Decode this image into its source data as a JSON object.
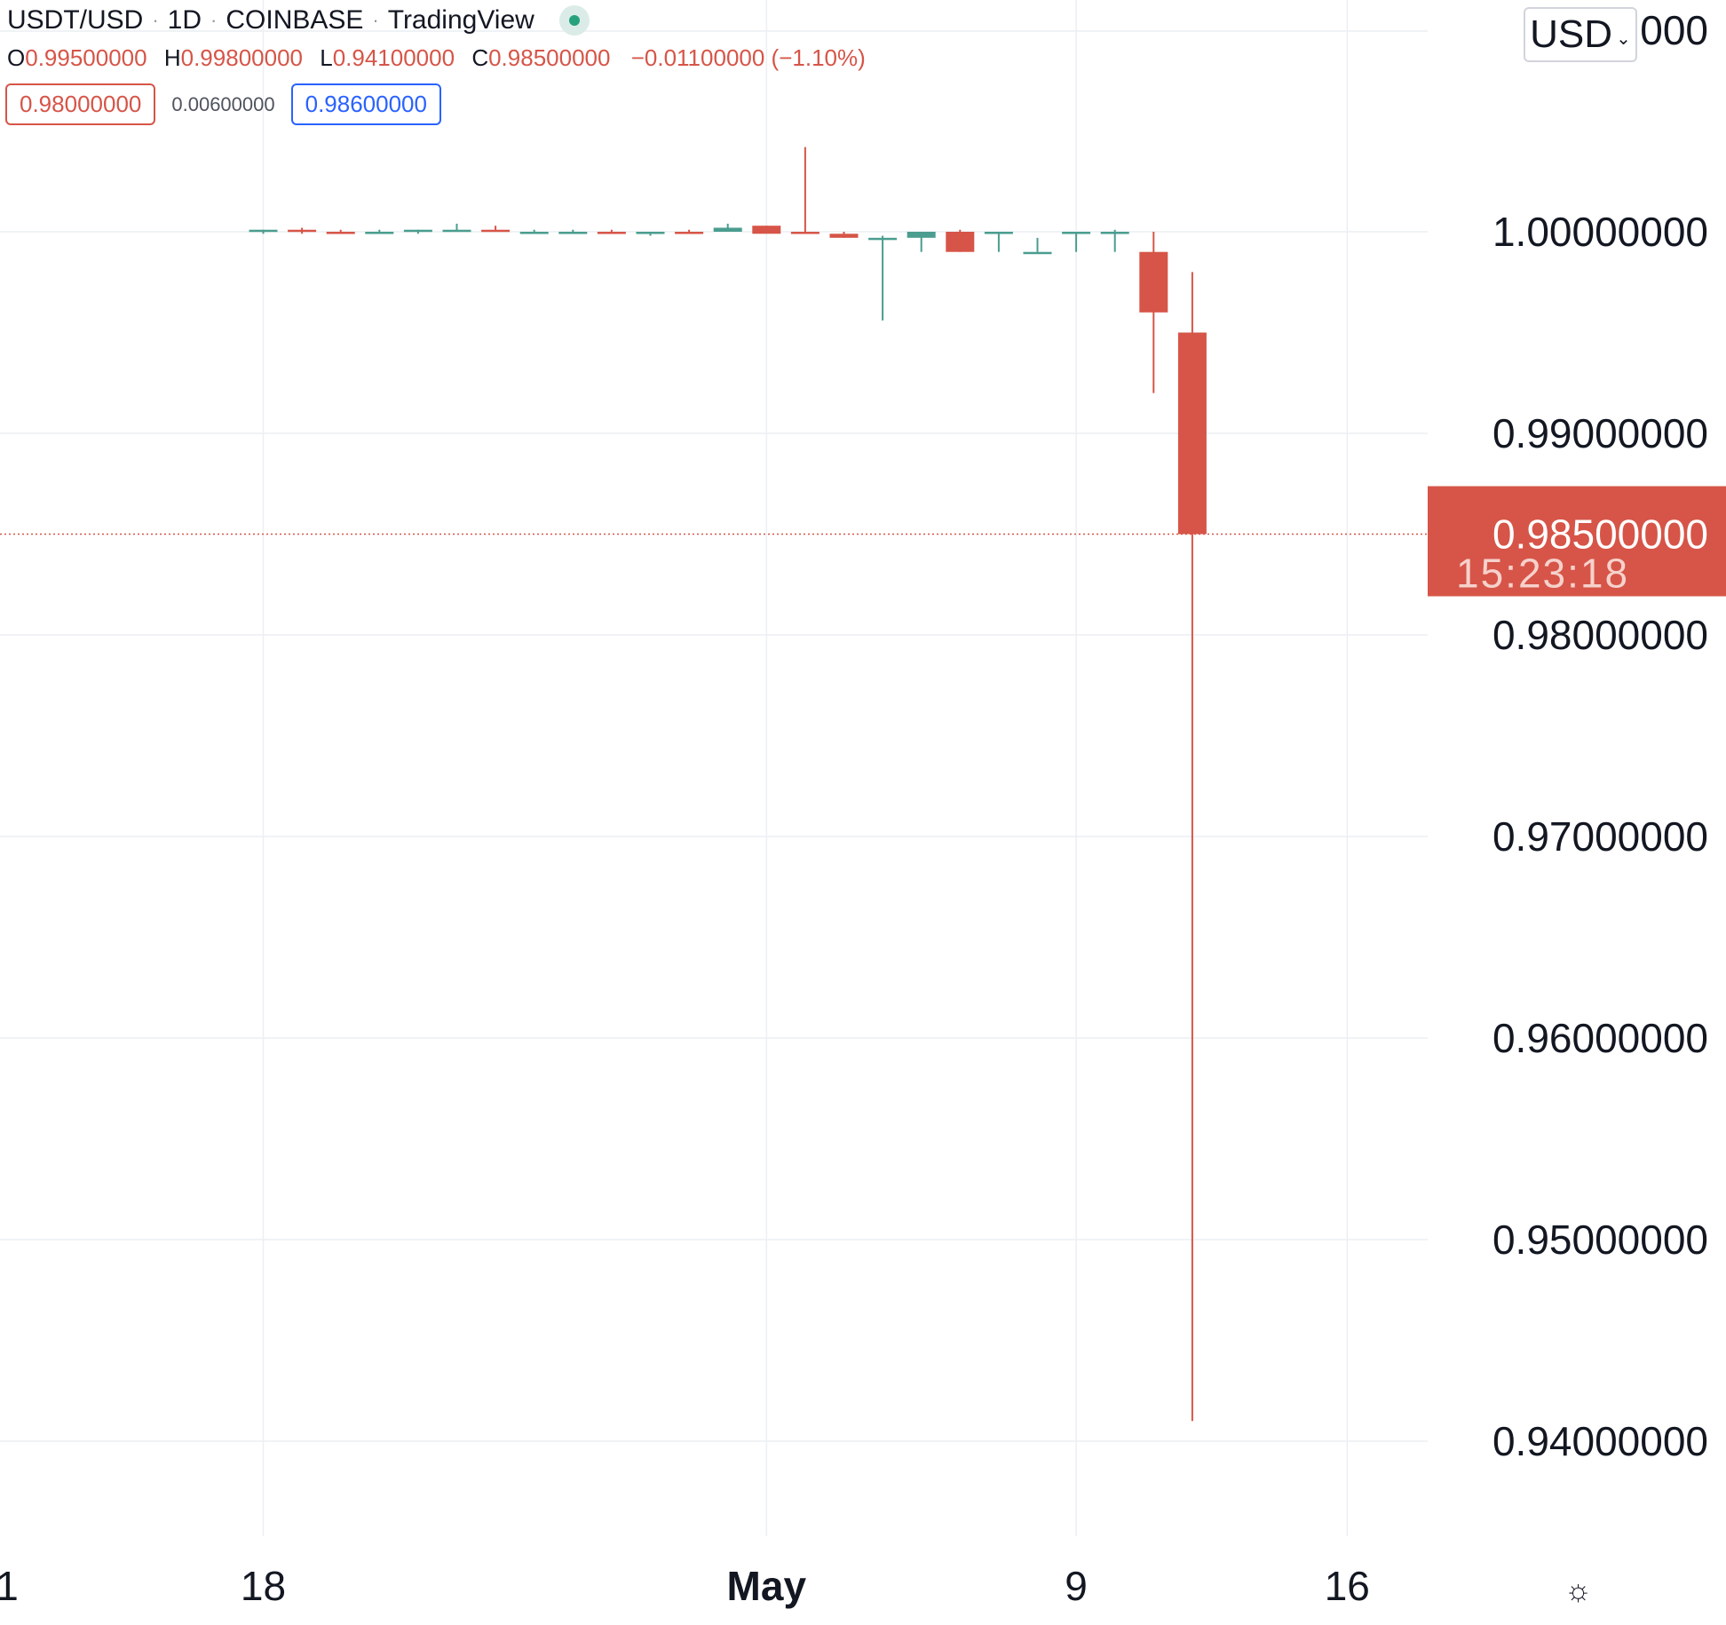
{
  "header": {
    "symbol": "USDT/USD",
    "interval": "1D",
    "exchange": "COINBASE",
    "provider": "TradingView",
    "status": "live"
  },
  "ohlc": {
    "o_key": "O",
    "o": "0.99500000",
    "h_key": "H",
    "h": "0.99800000",
    "l_key": "L",
    "l": "0.94100000",
    "c_key": "C",
    "c": "0.98500000",
    "change": "−0.01100000 (−1.10%)"
  },
  "quote": {
    "bid": "0.98000000",
    "spread": "0.00600000",
    "ask": "0.98600000"
  },
  "currency": {
    "label": "USD"
  },
  "chart_data": {
    "type": "candlestick",
    "title": "",
    "xlabel": "",
    "ylabel": "",
    "ylim": [
      0.9335,
      1.01
    ],
    "y_ticks": [
      1.0,
      0.99,
      0.98,
      0.97,
      0.96,
      0.95,
      0.94
    ],
    "y_tick_labels": [
      "1.00000000",
      "0.99000000",
      "0.98000000",
      "0.97000000",
      "0.96000000",
      "0.95000000",
      "0.94000000"
    ],
    "top_tick_label_partial": "1.0  000",
    "x_tick_labels": [
      {
        "label": "1",
        "index": -6.8,
        "bold": false
      },
      {
        "label": "18",
        "index": 0,
        "bold": false
      },
      {
        "label": "May",
        "index": 13,
        "bold": true
      },
      {
        "label": "9",
        "index": 21,
        "bold": false
      },
      {
        "label": "16",
        "index": 28,
        "bold": false
      }
    ],
    "candles": [
      {
        "date": "Apr 18",
        "o": 1.0,
        "h": 1.0001,
        "l": 0.9999,
        "c": 1.0001
      },
      {
        "date": "Apr 19",
        "o": 1.0001,
        "h": 1.0002,
        "l": 0.9999,
        "c": 1.0
      },
      {
        "date": "Apr 20",
        "o": 1.0,
        "h": 1.0001,
        "l": 0.9999,
        "c": 0.9999
      },
      {
        "date": "Apr 21",
        "o": 0.9999,
        "h": 1.0001,
        "l": 0.9999,
        "c": 1.0
      },
      {
        "date": "Apr 22",
        "o": 1.0,
        "h": 1.0001,
        "l": 0.9999,
        "c": 1.0001
      },
      {
        "date": "Apr 23",
        "o": 1.0001,
        "h": 1.0004,
        "l": 1.0,
        "c": 1.0001
      },
      {
        "date": "Apr 24",
        "o": 1.0001,
        "h": 1.0003,
        "l": 1.0,
        "c": 1.0
      },
      {
        "date": "Apr 25",
        "o": 1.0,
        "h": 1.0001,
        "l": 0.9999,
        "c": 1.0
      },
      {
        "date": "Apr 26",
        "o": 1.0,
        "h": 1.0001,
        "l": 0.9999,
        "c": 1.0
      },
      {
        "date": "Apr 27",
        "o": 1.0,
        "h": 1.0001,
        "l": 0.9999,
        "c": 0.9999
      },
      {
        "date": "Apr 28",
        "o": 0.9999,
        "h": 1.0,
        "l": 0.9998,
        "c": 1.0
      },
      {
        "date": "Apr 29",
        "o": 1.0,
        "h": 1.0001,
        "l": 0.9999,
        "c": 0.9999
      },
      {
        "date": "Apr 30",
        "o": 1.0,
        "h": 1.0004,
        "l": 1.0,
        "c": 1.0002
      },
      {
        "date": "May 1",
        "o": 1.0003,
        "h": 1.0003,
        "l": 1.0,
        "c": 0.9999
      },
      {
        "date": "May 2",
        "o": 1.0,
        "h": 1.0042,
        "l": 0.9999,
        "c": 0.9999
      },
      {
        "date": "May 3",
        "o": 0.9999,
        "h": 1.0,
        "l": 0.9997,
        "c": 0.9997
      },
      {
        "date": "May 4",
        "o": 0.9997,
        "h": 0.9998,
        "l": 0.9956,
        "c": 0.9997
      },
      {
        "date": "May 5",
        "o": 0.9997,
        "h": 0.9999,
        "l": 0.999,
        "c": 1.0
      },
      {
        "date": "May 6",
        "o": 1.0,
        "h": 1.0001,
        "l": 0.999,
        "c": 0.999
      },
      {
        "date": "May 7",
        "o": 0.9999,
        "h": 1.0,
        "l": 0.999,
        "c": 1.0
      },
      {
        "date": "May 8",
        "o": 0.999,
        "h": 0.9997,
        "l": 0.999,
        "c": 0.999
      },
      {
        "date": "May 9",
        "o": 1.0,
        "h": 1.0,
        "l": 0.999,
        "c": 1.0
      },
      {
        "date": "May 10",
        "o": 1.0,
        "h": 1.0001,
        "l": 0.999,
        "c": 1.0
      },
      {
        "date": "May 11",
        "o": 0.999,
        "h": 1.0,
        "l": 0.992,
        "c": 0.996
      },
      {
        "date": "May 12",
        "o": 0.995,
        "h": 0.998,
        "l": 0.941,
        "c": 0.985
      }
    ],
    "last_price": {
      "value": 0.985,
      "label": "0.98500000",
      "countdown": "15:23:18"
    },
    "colors": {
      "up": "#4a9d8f",
      "down": "#d65548",
      "grid": "#eceff3",
      "text": "#131722"
    },
    "grid": true
  },
  "settings_icon": "sun-gear-icon"
}
